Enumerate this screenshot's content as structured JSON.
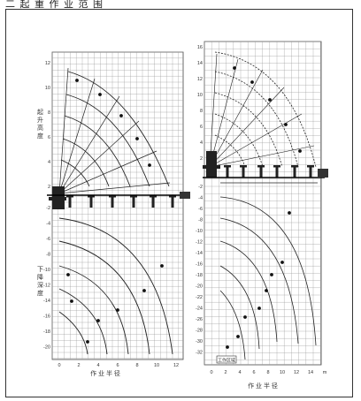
{
  "caption": "二 起 重 作 业 范 围",
  "left_chart": {
    "x_axis_label": "作 业 半 径",
    "x_ticks": [
      "0",
      "2",
      "4",
      "6",
      "8",
      "10",
      "12"
    ],
    "y_ticks_top": [
      "12",
      "10",
      "8",
      "6",
      "4",
      "2"
    ],
    "y_ticks_bottom": [
      "-2",
      "-4",
      "-6",
      "-8",
      "-10",
      "-12",
      "-14",
      "-16",
      "-18",
      "-20"
    ],
    "y_label_top": "起 升 高 度",
    "y_label_bottom": "下 降 深 度"
  },
  "right_chart": {
    "x_axis_label": "作 业 半 径",
    "x_ticks": [
      "0",
      "2",
      "4",
      "6",
      "8",
      "10",
      "12",
      "14",
      "m"
    ],
    "y_ticks_top": [
      "16",
      "14",
      "12",
      "10",
      "8",
      "6",
      "4",
      "2"
    ],
    "y_ticks_bottom": [
      "-2",
      "-4",
      "-6",
      "-8",
      "-10",
      "-12",
      "-14",
      "-16",
      "-18",
      "-20",
      "-22",
      "-24",
      "-26",
      "-28",
      "-30",
      "-32"
    ],
    "box_label": "工作区域",
    "axis_unit": "m"
  }
}
